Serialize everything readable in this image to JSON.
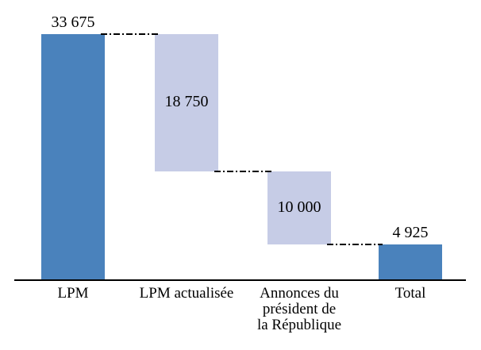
{
  "chart_data": {
    "type": "bar",
    "subtype": "waterfall",
    "title": "",
    "xlabel": "",
    "ylabel": "",
    "ylim": [
      0,
      33675
    ],
    "grid": false,
    "legend": false,
    "background": "#FFFFFF",
    "categories": [
      "LPM",
      "LPM actualisée",
      "Annonces du\nprésident de\nla République",
      "Total"
    ],
    "bars": [
      {
        "category": "LPM",
        "value": 33675,
        "display": "33 675",
        "base": 0,
        "top": 33675,
        "role": "start-total",
        "fill": "solid",
        "label_position": "above"
      },
      {
        "category": "LPM actualisée",
        "value": 18750,
        "display": "18 750",
        "base": 14925,
        "top": 33675,
        "role": "decrease",
        "fill": "light",
        "label_position": "inside"
      },
      {
        "category": "Annonces du président de la République",
        "value": 10000,
        "display": "10 000",
        "base": 4925,
        "top": 14925,
        "role": "decrease",
        "fill": "light",
        "label_position": "inside"
      },
      {
        "category": "Total",
        "value": 4925,
        "display": "4 925",
        "base": 0,
        "top": 4925,
        "role": "end-total",
        "fill": "solid",
        "label_position": "above"
      }
    ],
    "connectors": [
      {
        "from": 0,
        "to": 1,
        "level": 33675
      },
      {
        "from": 1,
        "to": 2,
        "level": 14925
      },
      {
        "from": 2,
        "to": 3,
        "level": 4925
      }
    ],
    "colors": {
      "solid": "#4A82BC",
      "light": "#C6CCE6",
      "axis": "#000000",
      "connector": "#000000",
      "text": "#000000"
    }
  }
}
